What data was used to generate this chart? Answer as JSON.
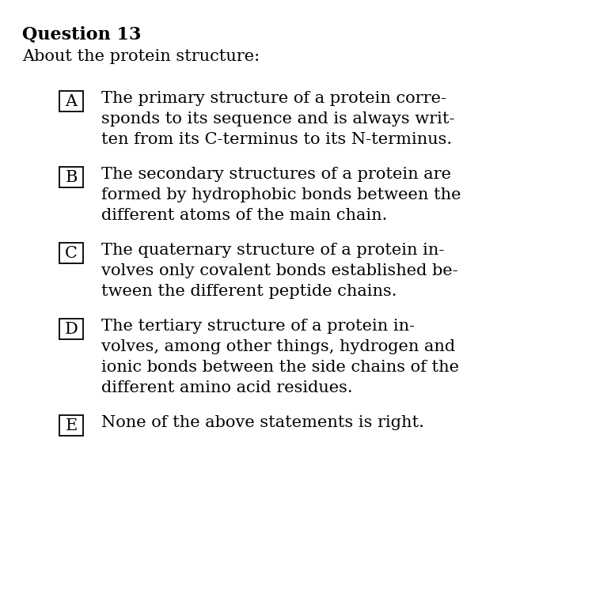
{
  "title": "Question 13",
  "subtitle": "About the protein structure:",
  "background_color": "#ffffff",
  "text_color": "#000000",
  "options": [
    {
      "label": "A",
      "lines": [
        "The primary structure of a protein corre-",
        "sponds to its sequence and is always writ-",
        "ten from its C-terminus to its N-terminus."
      ]
    },
    {
      "label": "B",
      "lines": [
        "The secondary structures of a protein are",
        "formed by hydrophobic bonds between the",
        "different atoms of the main chain."
      ]
    },
    {
      "label": "C",
      "lines": [
        "The quaternary structure of a protein in-",
        "volves only covalent bonds established be-",
        "tween the different peptide chains."
      ]
    },
    {
      "label": "D",
      "lines": [
        "The tertiary structure of a protein in-",
        "volves, among other things, hydrogen and",
        "ionic bonds between the side chains of the",
        "different amino acid residues."
      ]
    },
    {
      "label": "E",
      "lines": [
        "None of the above statements is right."
      ]
    }
  ],
  "title_fontsize": 16,
  "subtitle_fontsize": 15,
  "option_fontsize": 15,
  "label_fontsize": 15,
  "font_family": "DejaVu Serif"
}
